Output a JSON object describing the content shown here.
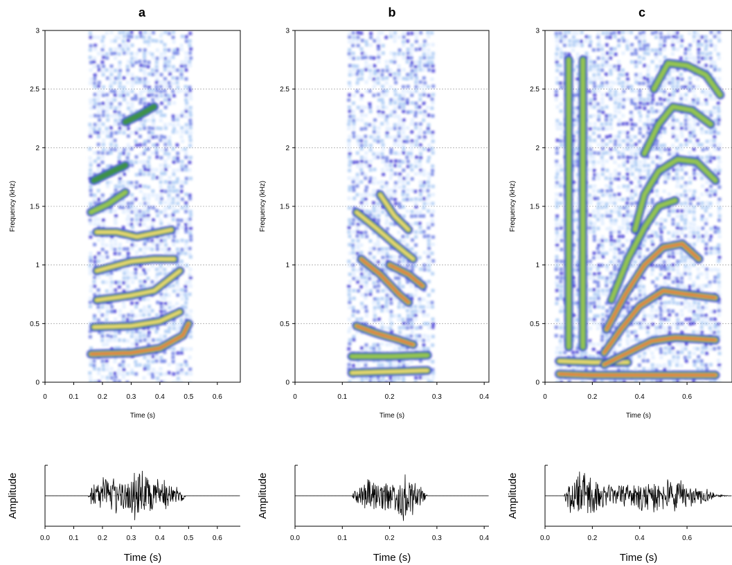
{
  "chart_data": [
    {
      "type": "heatmap",
      "panel": "a",
      "title": "a",
      "xlabel": "Time (s)",
      "ylabel": "Frequency (kHz)",
      "xlim": [
        0,
        0.68
      ],
      "ylim": [
        0,
        3
      ],
      "xticks": [
        "0",
        "0.1",
        "0.2",
        "0.3",
        "0.4",
        "0.5",
        "0.6"
      ],
      "yticks": [
        "0",
        "0.5",
        "1",
        "1.5",
        "2",
        "2.5",
        "3"
      ],
      "grid": "horizontal dotted",
      "signal_range": [
        0.15,
        0.5
      ],
      "bands": [
        {
          "t": [
            0.16,
            0.3,
            0.4,
            0.48,
            0.5
          ],
          "f": [
            0.24,
            0.25,
            0.29,
            0.4,
            0.5
          ],
          "intensity": 1.0
        },
        {
          "t": [
            0.17,
            0.3,
            0.4,
            0.47
          ],
          "f": [
            0.47,
            0.48,
            0.52,
            0.6
          ],
          "intensity": 0.6
        },
        {
          "t": [
            0.18,
            0.3,
            0.38,
            0.47
          ],
          "f": [
            0.7,
            0.74,
            0.78,
            0.95
          ],
          "intensity": 0.7
        },
        {
          "t": [
            0.18,
            0.3,
            0.38,
            0.45
          ],
          "f": [
            0.95,
            1.03,
            1.05,
            1.05
          ],
          "intensity": 0.6
        },
        {
          "t": [
            0.18,
            0.25,
            0.32,
            0.44
          ],
          "f": [
            1.28,
            1.28,
            1.24,
            1.3
          ],
          "intensity": 0.65
        },
        {
          "t": [
            0.16,
            0.22,
            0.28
          ],
          "f": [
            1.45,
            1.52,
            1.62
          ],
          "intensity": 0.55
        },
        {
          "t": [
            0.17,
            0.22,
            0.28
          ],
          "f": [
            1.72,
            1.78,
            1.85
          ],
          "intensity": 0.35
        },
        {
          "t": [
            0.28,
            0.33,
            0.38
          ],
          "f": [
            2.22,
            2.28,
            2.35
          ],
          "intensity": 0.3
        }
      ]
    },
    {
      "type": "heatmap",
      "panel": "b",
      "title": "b",
      "xlabel": "Time (s)",
      "ylabel": "Frequency (kHz)",
      "xlim": [
        0,
        0.41
      ],
      "ylim": [
        0,
        3
      ],
      "xticks": [
        "0",
        "0.1",
        "0.2",
        "0.3",
        "0.4"
      ],
      "yticks": [
        "0",
        "0.5",
        "1",
        "1.5",
        "2",
        "2.5",
        "3"
      ],
      "grid": "horizontal dotted",
      "signal_range": [
        0.11,
        0.29
      ],
      "bands": [
        {
          "t": [
            0.12,
            0.2,
            0.28
          ],
          "f": [
            0.08,
            0.09,
            0.1
          ],
          "intensity": 0.7
        },
        {
          "t": [
            0.12,
            0.2,
            0.28
          ],
          "f": [
            0.22,
            0.22,
            0.23
          ],
          "intensity": 0.5
        },
        {
          "t": [
            0.13,
            0.17,
            0.22,
            0.25
          ],
          "f": [
            0.48,
            0.42,
            0.36,
            0.32
          ],
          "intensity": 0.95
        },
        {
          "t": [
            0.14,
            0.18,
            0.22,
            0.24
          ],
          "f": [
            1.05,
            0.92,
            0.75,
            0.68
          ],
          "intensity": 0.85
        },
        {
          "t": [
            0.2,
            0.24,
            0.27
          ],
          "f": [
            1.0,
            0.92,
            0.82
          ],
          "intensity": 0.95
        },
        {
          "t": [
            0.13,
            0.17,
            0.21,
            0.25
          ],
          "f": [
            1.45,
            1.32,
            1.18,
            1.05
          ],
          "intensity": 0.8
        },
        {
          "t": [
            0.18,
            0.21,
            0.24
          ],
          "f": [
            1.6,
            1.42,
            1.3
          ],
          "intensity": 0.6
        }
      ]
    },
    {
      "type": "heatmap",
      "panel": "c",
      "title": "c",
      "xlabel": "Time (s)",
      "ylabel": "Frequency (kHz)",
      "xlim": [
        0,
        0.79
      ],
      "ylim": [
        0,
        3
      ],
      "xticks": [
        "0",
        "0.2",
        "0.4",
        "0.6"
      ],
      "yticks": [
        "0",
        "0.5",
        "1",
        "1.5",
        "2",
        "2.5",
        "3"
      ],
      "grid": "horizontal dotted",
      "signal_range": [
        0.04,
        0.73
      ],
      "bands": [
        {
          "t": [
            0.06,
            0.2,
            0.4,
            0.6,
            0.72
          ],
          "f": [
            0.07,
            0.06,
            0.06,
            0.06,
            0.06
          ],
          "intensity": 0.95
        },
        {
          "t": [
            0.06,
            0.2,
            0.35
          ],
          "f": [
            0.18,
            0.17,
            0.17
          ],
          "intensity": 0.6
        },
        {
          "t": [
            0.25,
            0.35,
            0.45,
            0.55,
            0.72
          ],
          "f": [
            0.15,
            0.25,
            0.35,
            0.38,
            0.36
          ],
          "intensity": 1.0
        },
        {
          "t": [
            0.25,
            0.32,
            0.4,
            0.5,
            0.6,
            0.72
          ],
          "f": [
            0.25,
            0.45,
            0.65,
            0.78,
            0.75,
            0.72
          ],
          "intensity": 0.95
        },
        {
          "t": [
            0.26,
            0.34,
            0.42,
            0.5,
            0.58,
            0.65
          ],
          "f": [
            0.45,
            0.75,
            1.0,
            1.15,
            1.18,
            1.05
          ],
          "intensity": 0.85
        },
        {
          "t": [
            0.28,
            0.35,
            0.42,
            0.48,
            0.55
          ],
          "f": [
            0.7,
            1.05,
            1.32,
            1.5,
            1.55
          ],
          "intensity": 0.5
        },
        {
          "t": [
            0.38,
            0.42,
            0.48,
            0.56,
            0.64,
            0.72
          ],
          "f": [
            1.3,
            1.6,
            1.8,
            1.9,
            1.88,
            1.72
          ],
          "intensity": 0.55
        },
        {
          "t": [
            0.42,
            0.48,
            0.54,
            0.62,
            0.7
          ],
          "f": [
            1.95,
            2.2,
            2.35,
            2.32,
            2.2
          ],
          "intensity": 0.5
        },
        {
          "t": [
            0.46,
            0.52,
            0.6,
            0.68,
            0.74
          ],
          "f": [
            2.5,
            2.72,
            2.7,
            2.62,
            2.45
          ],
          "intensity": 0.5
        },
        {
          "t": [
            0.1,
            0.1,
            0.1,
            0.1,
            0.1,
            0.1
          ],
          "f": [
            0.3,
            0.8,
            1.3,
            1.8,
            2.3,
            2.75
          ],
          "intensity": 0.55
        },
        {
          "t": [
            0.16,
            0.16,
            0.16,
            0.16,
            0.16,
            0.16
          ],
          "f": [
            0.3,
            0.8,
            1.3,
            1.8,
            2.3,
            2.75
          ],
          "intensity": 0.5
        }
      ]
    },
    {
      "type": "line",
      "panel": "a-waveform",
      "xlabel": "Time (s)",
      "ylabel": "Amplitude",
      "xlim": [
        0,
        0.68
      ],
      "xticks": [
        "0.0",
        "0.1",
        "0.2",
        "0.3",
        "0.4",
        "0.5",
        "0.6"
      ],
      "envelope": {
        "t": [
          0.0,
          0.15,
          0.16,
          0.22,
          0.27,
          0.32,
          0.38,
          0.45,
          0.48,
          0.49,
          0.68
        ],
        "a": [
          0.0,
          0.0,
          0.35,
          0.95,
          0.55,
          1.0,
          0.8,
          0.45,
          0.25,
          0.0,
          0.0
        ]
      }
    },
    {
      "type": "line",
      "panel": "b-waveform",
      "xlabel": "Time (s)",
      "ylabel": "Amplitude",
      "xlim": [
        0,
        0.41
      ],
      "xticks": [
        "0.0",
        "0.1",
        "0.2",
        "0.3",
        "0.4"
      ],
      "envelope": {
        "t": [
          0.0,
          0.12,
          0.13,
          0.16,
          0.2,
          0.23,
          0.25,
          0.27,
          0.28,
          0.41
        ],
        "a": [
          0.0,
          0.0,
          0.3,
          0.7,
          0.6,
          1.0,
          0.7,
          0.3,
          0.0,
          0.0
        ]
      }
    },
    {
      "type": "line",
      "panel": "c-waveform",
      "xlabel": "Time (s)",
      "ylabel": "Amplitude",
      "xlim": [
        0,
        0.79
      ],
      "xticks": [
        "0.0",
        "0.2",
        "0.4",
        "0.6"
      ],
      "envelope": {
        "t": [
          0.0,
          0.08,
          0.1,
          0.14,
          0.18,
          0.22,
          0.28,
          0.35,
          0.45,
          0.55,
          0.65,
          0.7,
          0.72,
          0.79
        ],
        "a": [
          0.0,
          0.0,
          0.55,
          0.9,
          1.0,
          0.6,
          0.35,
          0.45,
          0.7,
          0.6,
          0.35,
          0.25,
          0.05,
          0.0
        ]
      }
    }
  ]
}
